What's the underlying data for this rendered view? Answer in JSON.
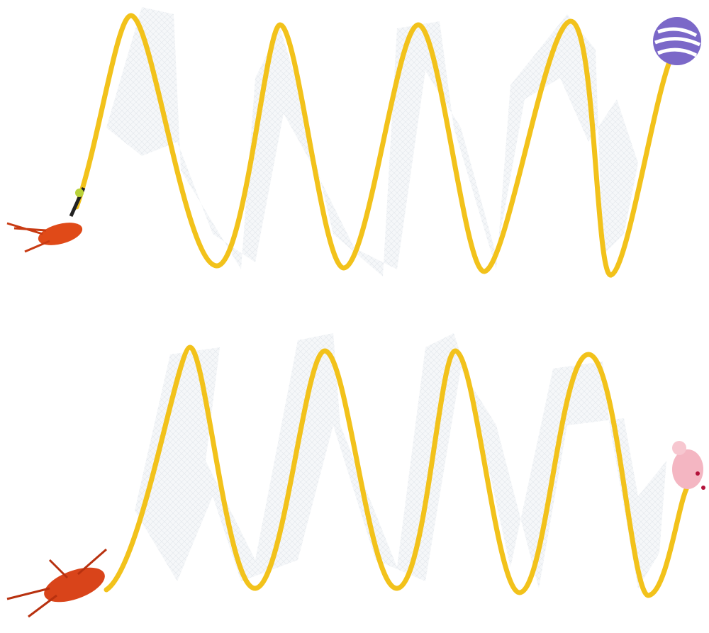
{
  "image": {
    "subject": "spiral-cat-tunnel-toys",
    "colors": {
      "background": "#ffffff",
      "spring": "#f2c21b",
      "mesh": "#eef1f4",
      "feather": "#d9441a",
      "ball": "#7b68c8",
      "mouse": "#f4b6c2"
    }
  }
}
